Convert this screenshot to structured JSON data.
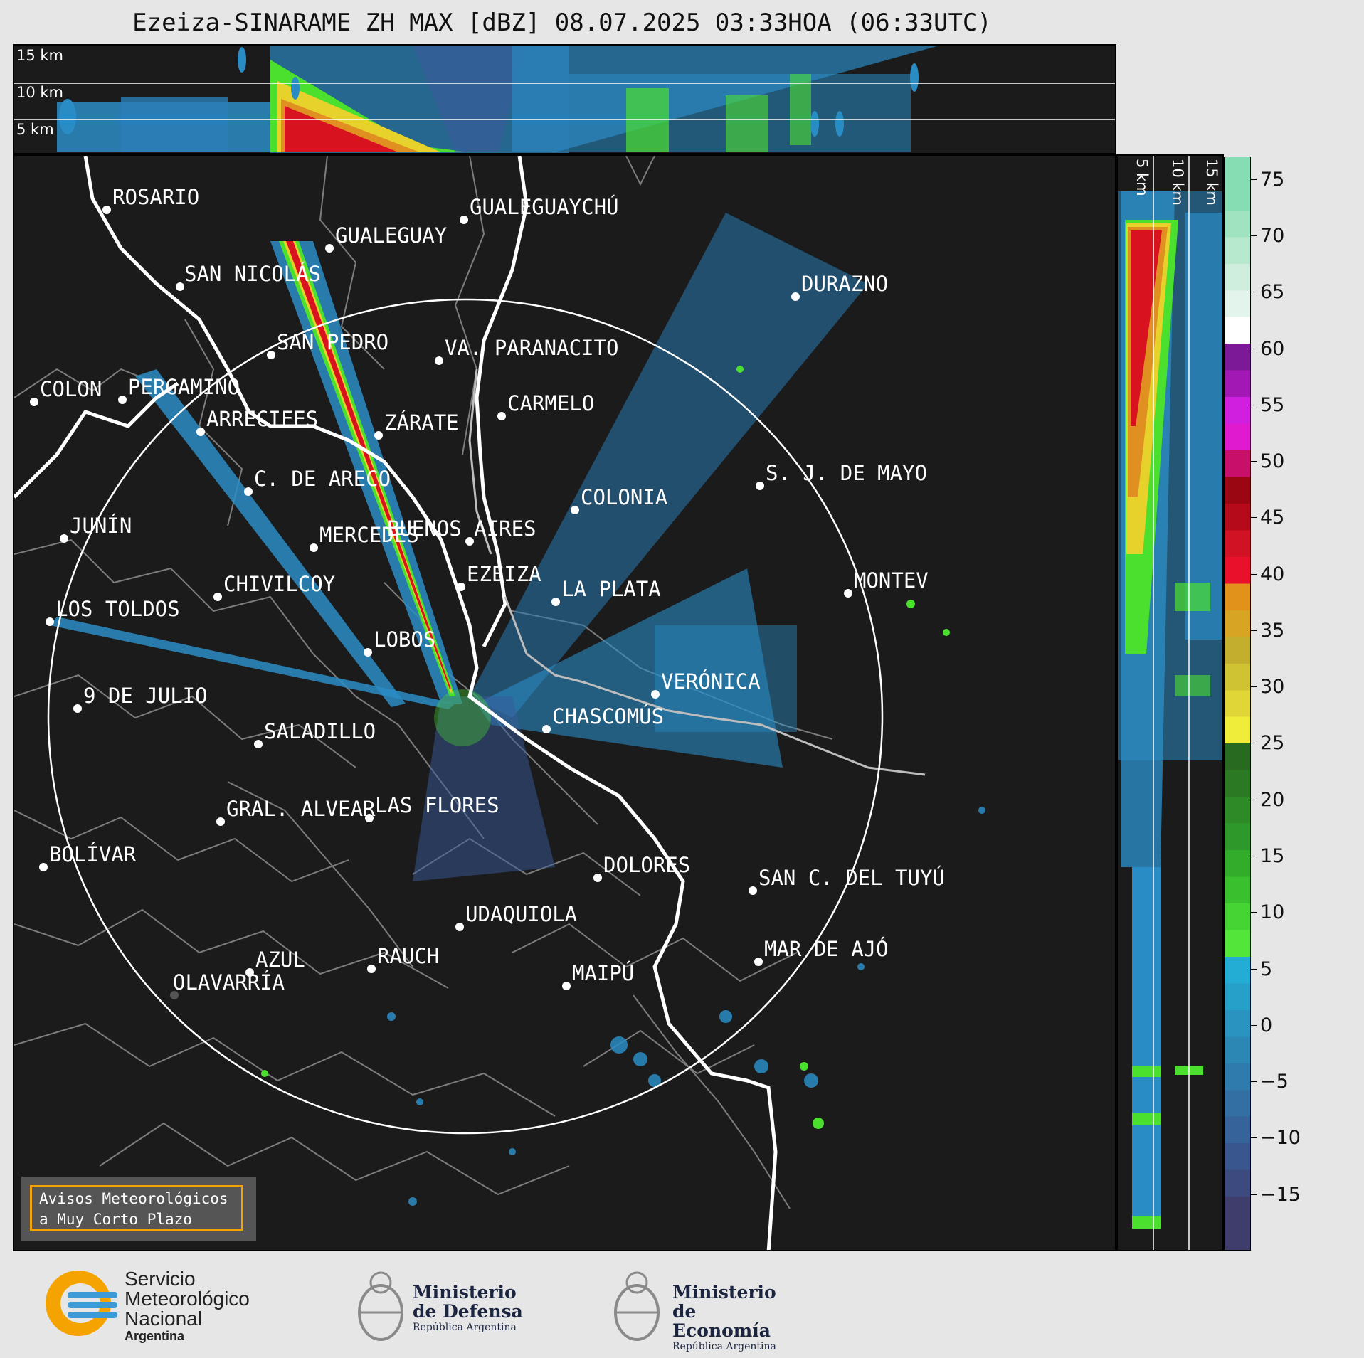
{
  "title": "Ezeiza-SINARAME ZH MAX [dBZ] 08.07.2025 03:33HOA (06:33UTC)",
  "top_panel_labels": [
    "15 km",
    "10 km",
    "5 km"
  ],
  "side_panel_labels": [
    "5 km",
    "10 km",
    "15 km"
  ],
  "colorbar": {
    "ticks": [
      "75",
      "70",
      "65",
      "60",
      "55",
      "50",
      "45",
      "40",
      "35",
      "30",
      "25",
      "20",
      "15",
      "10",
      "5",
      "0",
      "−5",
      "−10",
      "−15"
    ],
    "range_dbz": [
      -20,
      77
    ]
  },
  "cities": [
    {
      "name": "ROSARIO"
    },
    {
      "name": "GUALEGUAYCHÚ"
    },
    {
      "name": "GUALEGUAY"
    },
    {
      "name": "SAN NICOLÁS"
    },
    {
      "name": "DURAZNO"
    },
    {
      "name": "SAN PEDRO"
    },
    {
      "name": "VA. PARANACITO"
    },
    {
      "name": "COLON"
    },
    {
      "name": "PERGAMINO"
    },
    {
      "name": "CARMELO"
    },
    {
      "name": "ARRECIFES"
    },
    {
      "name": "ZÁRATE"
    },
    {
      "name": "S. J. DE MAYO"
    },
    {
      "name": "C. DE ARECO"
    },
    {
      "name": "COLONIA"
    },
    {
      "name": "BUENOS AIRES"
    },
    {
      "name": "JUNÍN"
    },
    {
      "name": "MERCEDES"
    },
    {
      "name": "EZEIZA"
    },
    {
      "name": "MONTEV"
    },
    {
      "name": "CHIVILCOY"
    },
    {
      "name": "LA PLATA"
    },
    {
      "name": "LOS TOLDOS"
    },
    {
      "name": "LOBOS"
    },
    {
      "name": "VERÓNICA"
    },
    {
      "name": "9 DE JULIO"
    },
    {
      "name": "CHASCOMÚS"
    },
    {
      "name": "SALADILLO"
    },
    {
      "name": "GRAL. ALVEAR"
    },
    {
      "name": "LAS FLORES"
    },
    {
      "name": "BOLÍVAR"
    },
    {
      "name": "DOLORES"
    },
    {
      "name": "SAN C. DEL TUYÚ"
    },
    {
      "name": "UDAQUIOLA"
    },
    {
      "name": "MAR DE AJÓ"
    },
    {
      "name": "AZUL"
    },
    {
      "name": "RAUCH"
    },
    {
      "name": "MAIPÚ"
    },
    {
      "name": "OLAVARRÍA"
    }
  ],
  "aviso": {
    "line1": "Avisos Meteorológicos",
    "line2": "a Muy Corto Plazo"
  },
  "logos": {
    "smn": {
      "line1": "Servicio",
      "line2": "Meteorológico",
      "line3": "Nacional",
      "line4": "Argentina"
    },
    "defensa": {
      "line1": "Ministerio",
      "line2": "de Defensa",
      "line3": "República Argentina"
    },
    "economia": {
      "line1": "Ministerio",
      "line2": "de Economía",
      "line3": "República Argentina"
    }
  },
  "colors": {
    "background": "#1b1b1b",
    "range_ring": "#ffffff",
    "accent": "#f5a300"
  }
}
